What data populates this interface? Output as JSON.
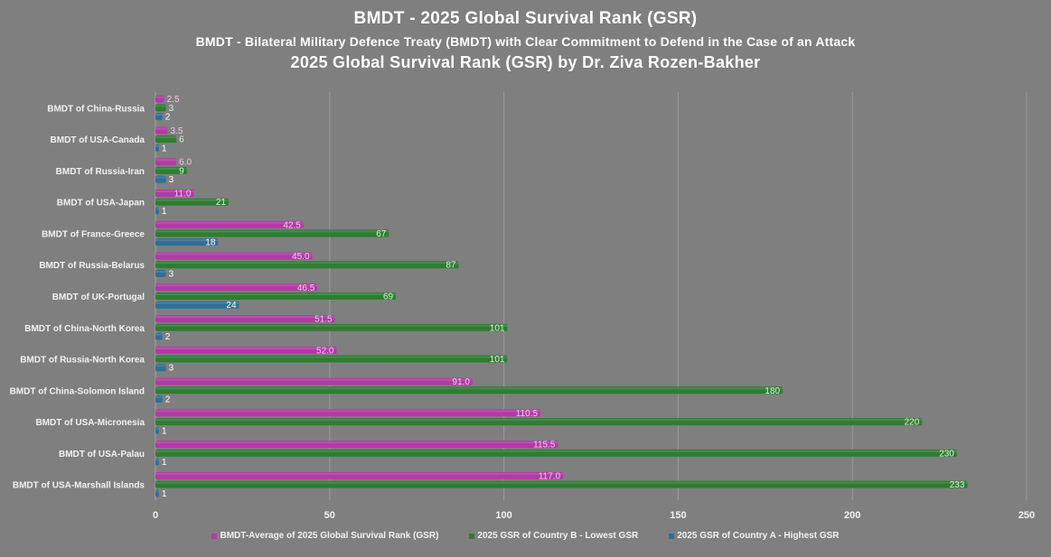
{
  "chart_data": {
    "type": "bar",
    "orientation": "horizontal",
    "title": "BMDT - 2025 Global Survival Rank (GSR)",
    "subtitle": "BMDT - Bilateral Military Defence Treaty (BMDT) with Clear Commitment to Defend in the Case of an Attack",
    "subtitle2": "2025 Global Survival Rank (GSR) by Dr. Ziva Rozen-Bakher",
    "categories": [
      "BMDT of China-Russia",
      "BMDT of USA-Canada",
      "BMDT of Russia-Iran",
      "BMDT of USA-Japan",
      "BMDT of France-Greece",
      "BMDT of Russia-Belarus",
      "BMDT of UK-Portugal",
      "BMDT of China-North Korea",
      "BMDT of Russia-North Korea",
      "BMDT of China-Solomon Island",
      "BMDT of USA-Micronesia",
      "BMDT of USA-Palau",
      "BMDT of USA-Marshall Islands"
    ],
    "series": [
      {
        "name": "BMDT-Average of 2025 Global Survival Rank (GSR)",
        "color": "#b23aa6",
        "label_color": "#f0c8ec",
        "values": [
          2.5,
          3.5,
          6.0,
          11.0,
          42.5,
          45.0,
          46.5,
          51.5,
          52.0,
          91.0,
          110.5,
          115.5,
          117.0
        ],
        "labels": [
          "2.5",
          "3.5",
          "6.0",
          "11.0",
          "42.5",
          "45.0",
          "46.5",
          "51.5",
          "52.0",
          "91.0",
          "110.5",
          "115.5",
          "117.0"
        ]
      },
      {
        "name": "2025 GSR of Country B - Lowest GSR",
        "color": "#2e7d32",
        "label_color": "#d6f0d6",
        "values": [
          3,
          6,
          9,
          21,
          67,
          87,
          69,
          101,
          101,
          180,
          220,
          230,
          233
        ],
        "labels": [
          "3",
          "6",
          "9",
          "21",
          "67",
          "87",
          "69",
          "101",
          "101",
          "180",
          "220",
          "230",
          "233"
        ]
      },
      {
        "name": "2025 GSR of Country A - Highest GSR",
        "color": "#2f6f96",
        "label_color": "#ffffff",
        "values": [
          2,
          1,
          3,
          1,
          18,
          3,
          24,
          2,
          3,
          2,
          1,
          1,
          1
        ],
        "labels": [
          "2",
          "1",
          "3",
          "1",
          "18",
          "3",
          "24",
          "2",
          "3",
          "2",
          "1",
          "1",
          "1"
        ]
      }
    ],
    "xlim": [
      0,
      250
    ],
    "xticks": [
      "0",
      "50",
      "100",
      "150",
      "200",
      "250"
    ],
    "xtick_values": [
      0,
      50,
      100,
      150,
      200,
      250
    ],
    "grid": true,
    "legend_position": "bottom"
  }
}
